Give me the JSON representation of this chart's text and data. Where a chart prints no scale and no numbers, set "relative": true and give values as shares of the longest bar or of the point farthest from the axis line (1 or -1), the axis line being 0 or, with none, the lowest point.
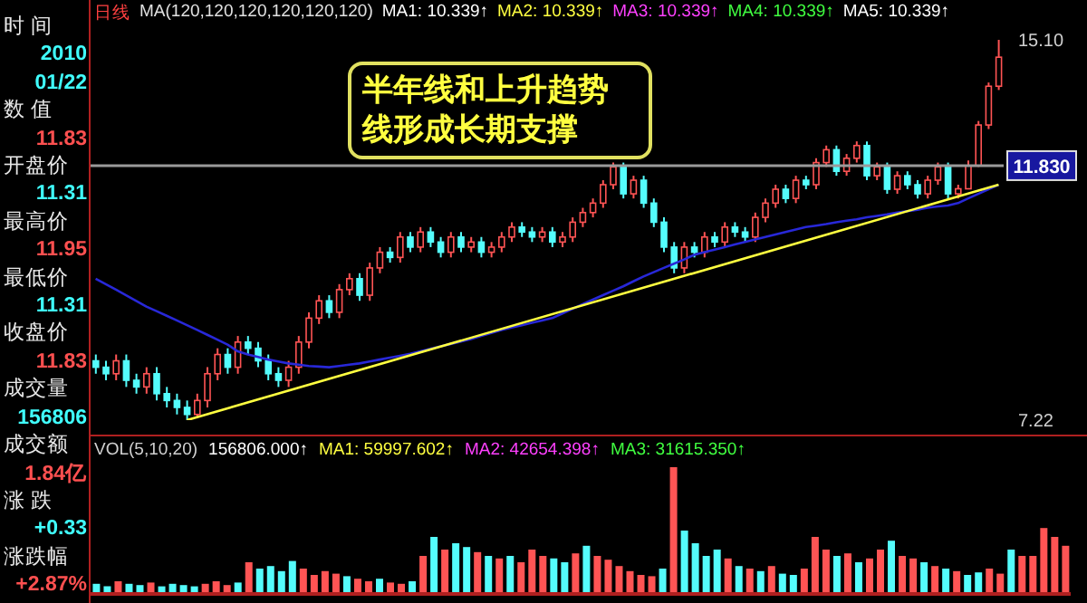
{
  "chart_data": [
    {
      "type": "other",
      "annotations": [
        "时 间",
        "2010",
        "01/22",
        "数 值",
        "11.83",
        "开盘价",
        "11.31",
        "最高价",
        "11.95",
        "最低价",
        "11.31",
        "收盘价",
        "11.83",
        "成交量",
        "156806",
        "成交额",
        "1.84亿",
        "涨 跌",
        "+0.33",
        "涨跌幅",
        "+2.87%"
      ]
    },
    {
      "type": "candlestick",
      "title": "日线",
      "log": "y",
      "ylim": [
        7.22,
        15.1
      ],
      "yticks": [
        {
          "value": 7.22,
          "label": "7.22"
        },
        {
          "value": 15.1,
          "label": "15.10"
        }
      ],
      "annotations": [
        "MA(120,120,120,120,120,120)",
        "MA1: 10.339↑",
        "MA2: 10.339↑",
        "MA3: 10.339↑",
        "MA4: 10.339↑",
        "MA5: 10.339↑",
        "半年线和上升趋势线形成长期支撑"
      ],
      "categories": [
        null,
        null,
        null,
        null,
        null,
        null,
        null,
        null,
        null,
        null,
        null,
        null,
        null,
        null,
        null,
        null,
        null,
        null,
        null,
        null,
        null,
        null,
        null,
        null,
        null,
        null,
        null,
        null,
        null,
        null,
        null,
        null,
        null,
        null,
        null,
        null,
        null,
        null,
        null,
        null,
        null,
        null,
        null,
        null,
        null,
        null,
        null,
        null,
        null,
        null,
        null,
        null,
        null,
        null,
        null,
        null,
        null,
        null,
        null,
        null,
        null,
        null,
        null,
        null,
        null,
        null,
        null,
        null,
        null,
        null,
        null,
        null,
        null,
        null,
        null,
        null,
        null,
        null,
        null,
        null,
        null,
        null,
        null,
        null,
        null,
        null,
        null,
        null,
        null,
        null
      ],
      "ohlc": [
        [
          8.1,
          8.2,
          7.9,
          8.0
        ],
        [
          8.0,
          8.1,
          7.8,
          7.9
        ],
        [
          7.9,
          8.2,
          7.8,
          8.1
        ],
        [
          8.1,
          8.2,
          7.7,
          7.8
        ],
        [
          7.8,
          7.9,
          7.6,
          7.7
        ],
        [
          7.7,
          8.0,
          7.6,
          7.9
        ],
        [
          7.9,
          8.0,
          7.5,
          7.6
        ],
        [
          7.6,
          7.7,
          7.4,
          7.5
        ],
        [
          7.5,
          7.6,
          7.3,
          7.4
        ],
        [
          7.4,
          7.5,
          7.22,
          7.3
        ],
        [
          7.3,
          7.6,
          7.25,
          7.5
        ],
        [
          7.5,
          8.0,
          7.4,
          7.9
        ],
        [
          7.9,
          8.3,
          7.8,
          8.2
        ],
        [
          8.2,
          8.3,
          7.9,
          8.0
        ],
        [
          8.0,
          8.5,
          7.9,
          8.4
        ],
        [
          8.4,
          8.5,
          8.2,
          8.3
        ],
        [
          8.3,
          8.4,
          8.0,
          8.1
        ],
        [
          8.1,
          8.2,
          7.8,
          7.9
        ],
        [
          7.9,
          8.0,
          7.7,
          7.8
        ],
        [
          7.8,
          8.1,
          7.7,
          8.0
        ],
        [
          8.0,
          8.5,
          7.9,
          8.4
        ],
        [
          8.4,
          8.9,
          8.3,
          8.8
        ],
        [
          8.8,
          9.2,
          8.7,
          9.1
        ],
        [
          9.1,
          9.2,
          8.8,
          8.9
        ],
        [
          8.9,
          9.4,
          8.8,
          9.3
        ],
        [
          9.3,
          9.6,
          9.2,
          9.5
        ],
        [
          9.5,
          9.6,
          9.1,
          9.2
        ],
        [
          9.2,
          9.8,
          9.1,
          9.7
        ],
        [
          9.7,
          10.1,
          9.6,
          10.0
        ],
        [
          10.0,
          10.1,
          9.8,
          9.9
        ],
        [
          9.9,
          10.4,
          9.8,
          10.3
        ],
        [
          10.3,
          10.4,
          10.0,
          10.1
        ],
        [
          10.1,
          10.5,
          10.0,
          10.4
        ],
        [
          10.4,
          10.5,
          10.1,
          10.2
        ],
        [
          10.2,
          10.3,
          9.9,
          10.0
        ],
        [
          10.0,
          10.4,
          9.9,
          10.3
        ],
        [
          10.3,
          10.4,
          10.0,
          10.1
        ],
        [
          10.1,
          10.3,
          10.0,
          10.2
        ],
        [
          10.2,
          10.3,
          9.9,
          10.0
        ],
        [
          10.0,
          10.2,
          9.9,
          10.1
        ],
        [
          10.1,
          10.4,
          10.0,
          10.3
        ],
        [
          10.3,
          10.6,
          10.2,
          10.5
        ],
        [
          10.5,
          10.6,
          10.3,
          10.4
        ],
        [
          10.4,
          10.5,
          10.2,
          10.3
        ],
        [
          10.3,
          10.5,
          10.2,
          10.4
        ],
        [
          10.4,
          10.5,
          10.1,
          10.2
        ],
        [
          10.2,
          10.4,
          10.1,
          10.3
        ],
        [
          10.3,
          10.7,
          10.2,
          10.6
        ],
        [
          10.6,
          10.9,
          10.5,
          10.8
        ],
        [
          10.8,
          11.1,
          10.7,
          11.0
        ],
        [
          11.0,
          11.5,
          10.9,
          11.4
        ],
        [
          11.4,
          11.9,
          11.3,
          11.8
        ],
        [
          11.8,
          11.9,
          11.1,
          11.2
        ],
        [
          11.2,
          11.6,
          11.1,
          11.5
        ],
        [
          11.5,
          11.6,
          10.9,
          11.0
        ],
        [
          11.0,
          11.1,
          10.5,
          10.6
        ],
        [
          10.6,
          10.7,
          10.0,
          10.1
        ],
        [
          10.1,
          10.2,
          9.6,
          9.7
        ],
        [
          9.7,
          10.2,
          9.6,
          10.1
        ],
        [
          10.1,
          10.2,
          9.9,
          10.0
        ],
        [
          10.0,
          10.4,
          9.9,
          10.3
        ],
        [
          10.3,
          10.4,
          10.1,
          10.2
        ],
        [
          10.2,
          10.6,
          10.1,
          10.5
        ],
        [
          10.5,
          10.6,
          10.3,
          10.4
        ],
        [
          10.4,
          10.5,
          10.2,
          10.3
        ],
        [
          10.3,
          10.8,
          10.2,
          10.7
        ],
        [
          10.7,
          11.1,
          10.6,
          11.0
        ],
        [
          11.0,
          11.4,
          10.9,
          11.3
        ],
        [
          11.3,
          11.4,
          11.0,
          11.1
        ],
        [
          11.1,
          11.6,
          11.0,
          11.5
        ],
        [
          11.5,
          11.6,
          11.3,
          11.4
        ],
        [
          11.4,
          12.0,
          11.3,
          11.9
        ],
        [
          11.9,
          12.3,
          11.8,
          12.2
        ],
        [
          12.2,
          12.3,
          11.6,
          11.7
        ],
        [
          11.7,
          12.1,
          11.6,
          12.0
        ],
        [
          12.0,
          12.4,
          11.9,
          12.3
        ],
        [
          12.3,
          12.4,
          11.5,
          11.6
        ],
        [
          11.6,
          11.9,
          11.5,
          11.8
        ],
        [
          11.8,
          11.9,
          11.2,
          11.3
        ],
        [
          11.3,
          11.7,
          11.2,
          11.6
        ],
        [
          11.6,
          11.7,
          11.3,
          11.4
        ],
        [
          11.4,
          11.5,
          11.1,
          11.2
        ],
        [
          11.2,
          11.6,
          11.1,
          11.5
        ],
        [
          11.5,
          11.9,
          11.4,
          11.8
        ],
        [
          11.8,
          11.9,
          11.1,
          11.2
        ],
        [
          11.2,
          11.4,
          11.1,
          11.31
        ],
        [
          11.31,
          11.95,
          11.31,
          11.83
        ],
        [
          11.83,
          12.9,
          11.8,
          12.8
        ],
        [
          12.8,
          13.9,
          12.7,
          13.8
        ],
        [
          13.8,
          15.1,
          13.7,
          14.6
        ]
      ],
      "colors": [
        "#54fcfc",
        "#54fcfc",
        "#ff5454",
        "#54fcfc",
        "#54fcfc",
        "#ff5454",
        "#54fcfc",
        "#54fcfc",
        "#54fcfc",
        "#54fcfc",
        "#ff5454",
        "#ff5454",
        "#ff5454",
        "#54fcfc",
        "#ff5454",
        "#54fcfc",
        "#54fcfc",
        "#54fcfc",
        "#54fcfc",
        "#ff5454",
        "#ff5454",
        "#ff5454",
        "#ff5454",
        "#54fcfc",
        "#ff5454",
        "#ff5454",
        "#54fcfc",
        "#ff5454",
        "#ff5454",
        "#54fcfc",
        "#ff5454",
        "#54fcfc",
        "#ff5454",
        "#54fcfc",
        "#54fcfc",
        "#ff5454",
        "#54fcfc",
        "#ff5454",
        "#54fcfc",
        "#ff5454",
        "#ff5454",
        "#ff5454",
        "#54fcfc",
        "#54fcfc",
        "#ff5454",
        "#54fcfc",
        "#ff5454",
        "#ff5454",
        "#ff5454",
        "#ff5454",
        "#ff5454",
        "#ff5454",
        "#54fcfc",
        "#ff5454",
        "#54fcfc",
        "#54fcfc",
        "#54fcfc",
        "#54fcfc",
        "#ff5454",
        "#54fcfc",
        "#ff5454",
        "#54fcfc",
        "#ff5454",
        "#54fcfc",
        "#54fcfc",
        "#ff5454",
        "#ff5454",
        "#ff5454",
        "#54fcfc",
        "#ff5454",
        "#54fcfc",
        "#ff5454",
        "#ff5454",
        "#54fcfc",
        "#ff5454",
        "#ff5454",
        "#54fcfc",
        "#ff5454",
        "#54fcfc",
        "#ff5454",
        "#54fcfc",
        "#54fcfc",
        "#ff5454",
        "#ff5454",
        "#54fcfc",
        "#ff5454",
        "#ff5454",
        "#ff5454",
        "#ff5454",
        "#ff5454"
      ],
      "series": [
        {
          "type": "line",
          "color": "#2828d8",
          "values": [
            9.5,
            9.4,
            9.3,
            9.2,
            9.1,
            9.0,
            8.92,
            8.84,
            8.76,
            8.68,
            8.6,
            8.52,
            8.44,
            8.36,
            8.25,
            8.2,
            8.16,
            8.12,
            8.09,
            8.06,
            8.04,
            8.02,
            8.01,
            8.0,
            8.02,
            8.04,
            8.06,
            8.09,
            8.12,
            8.15,
            8.18,
            8.21,
            8.25,
            8.29,
            8.33,
            8.37,
            8.41,
            8.45,
            8.5,
            8.55,
            8.6,
            8.64,
            8.68,
            8.72,
            8.76,
            8.8,
            8.88,
            8.96,
            9.04,
            9.12,
            9.2,
            9.28,
            9.36,
            9.45,
            9.54,
            9.62,
            9.7,
            9.78,
            9.86,
            9.95,
            10.0,
            10.05,
            10.1,
            10.15,
            10.2,
            10.25,
            10.3,
            10.35,
            10.4,
            10.45,
            10.5,
            10.53,
            10.56,
            10.6,
            10.63,
            10.66,
            10.7,
            10.73,
            10.76,
            10.8,
            10.83,
            10.86,
            10.9,
            10.93,
            10.95,
            11.0,
            11.1,
            11.2,
            11.3,
            11.4
          ]
        },
        {
          "type": "line",
          "color": "#ffff40",
          "values": [
            null,
            null,
            null,
            null,
            null,
            null,
            null,
            null,
            null,
            7.22,
            null,
            null,
            null,
            null,
            null,
            null,
            null,
            null,
            null,
            null,
            null,
            null,
            null,
            null,
            null,
            null,
            null,
            null,
            null,
            null,
            null,
            null,
            null,
            null,
            null,
            null,
            null,
            null,
            null,
            null,
            null,
            null,
            null,
            null,
            null,
            null,
            null,
            null,
            null,
            null,
            null,
            null,
            null,
            null,
            null,
            null,
            null,
            null,
            null,
            null,
            null,
            null,
            null,
            null,
            null,
            null,
            null,
            null,
            null,
            null,
            null,
            null,
            null,
            null,
            null,
            null,
            null,
            null,
            null,
            null,
            null,
            null,
            null,
            null,
            null,
            null,
            null,
            null,
            null,
            11.4
          ]
        }
      ],
      "ref_lines": [
        {
          "axis": "y",
          "value": 11.83,
          "label": "11.830",
          "color": "#9a9a9a"
        }
      ]
    },
    {
      "type": "bar",
      "relative": true,
      "title": "VOL(5,10,20)",
      "annotations": [
        "156806.000↑",
        "MA1: 59997.602↑",
        "MA2: 42654.398↑",
        "MA3: 31615.350↑"
      ],
      "categories": [
        null,
        null,
        null,
        null,
        null,
        null,
        null,
        null,
        null,
        null,
        null,
        null,
        null,
        null,
        null,
        null,
        null,
        null,
        null,
        null,
        null,
        null,
        null,
        null,
        null,
        null,
        null,
        null,
        null,
        null,
        null,
        null,
        null,
        null,
        null,
        null,
        null,
        null,
        null,
        null,
        null,
        null,
        null,
        null,
        null,
        null,
        null,
        null,
        null,
        null,
        null,
        null,
        null,
        null,
        null,
        null,
        null,
        null,
        null,
        null,
        null,
        null,
        null,
        null,
        null,
        null,
        null,
        null,
        null,
        null,
        null,
        null,
        null,
        null,
        null,
        null,
        null,
        null,
        null,
        null,
        null,
        null,
        null,
        null,
        null,
        null,
        null,
        null,
        null,
        null
      ],
      "values": [
        0.08,
        0.06,
        0.1,
        0.08,
        0.07,
        0.09,
        0.06,
        0.08,
        0.07,
        0.06,
        0.08,
        0.1,
        0.07,
        0.09,
        0.25,
        0.2,
        0.22,
        0.18,
        0.26,
        0.2,
        0.15,
        0.18,
        0.16,
        0.14,
        0.12,
        0.1,
        0.12,
        0.09,
        0.08,
        0.1,
        0.3,
        0.45,
        0.35,
        0.4,
        0.37,
        0.33,
        0.3,
        0.28,
        0.3,
        0.25,
        0.35,
        0.3,
        0.28,
        0.25,
        0.32,
        0.38,
        0.3,
        0.27,
        0.22,
        0.18,
        0.15,
        0.14,
        0.2,
        1.0,
        0.5,
        0.4,
        0.3,
        0.35,
        0.28,
        0.22,
        0.2,
        0.18,
        0.22,
        0.16,
        0.15,
        0.2,
        0.45,
        0.35,
        0.3,
        0.32,
        0.25,
        0.28,
        0.35,
        0.42,
        0.3,
        0.28,
        0.25,
        0.22,
        0.2,
        0.18,
        0.15,
        0.17,
        0.2,
        0.16,
        0.35,
        0.3,
        0.3,
        0.52,
        0.45,
        0.38
      ],
      "colors": [
        "#54fcfc",
        "#54fcfc",
        "#ff5454",
        "#54fcfc",
        "#54fcfc",
        "#ff5454",
        "#54fcfc",
        "#54fcfc",
        "#54fcfc",
        "#54fcfc",
        "#ff5454",
        "#ff5454",
        "#ff5454",
        "#54fcfc",
        "#ff5454",
        "#54fcfc",
        "#54fcfc",
        "#54fcfc",
        "#54fcfc",
        "#ff5454",
        "#ff5454",
        "#ff5454",
        "#ff5454",
        "#54fcfc",
        "#ff5454",
        "#ff5454",
        "#54fcfc",
        "#ff5454",
        "#ff5454",
        "#54fcfc",
        "#ff5454",
        "#54fcfc",
        "#ff5454",
        "#54fcfc",
        "#54fcfc",
        "#ff5454",
        "#54fcfc",
        "#ff5454",
        "#54fcfc",
        "#ff5454",
        "#ff5454",
        "#ff5454",
        "#54fcfc",
        "#54fcfc",
        "#ff5454",
        "#54fcfc",
        "#ff5454",
        "#ff5454",
        "#ff5454",
        "#ff5454",
        "#ff5454",
        "#ff5454",
        "#54fcfc",
        "#ff5454",
        "#54fcfc",
        "#54fcfc",
        "#54fcfc",
        "#54fcfc",
        "#ff5454",
        "#54fcfc",
        "#ff5454",
        "#54fcfc",
        "#ff5454",
        "#54fcfc",
        "#54fcfc",
        "#ff5454",
        "#ff5454",
        "#ff5454",
        "#54fcfc",
        "#ff5454",
        "#54fcfc",
        "#ff5454",
        "#ff5454",
        "#54fcfc",
        "#ff5454",
        "#ff5454",
        "#54fcfc",
        "#ff5454",
        "#54fcfc",
        "#ff5454",
        "#54fcfc",
        "#54fcfc",
        "#ff5454",
        "#ff5454",
        "#54fcfc",
        "#ff5454",
        "#ff5454",
        "#ff5454",
        "#ff5454",
        "#ff5454"
      ]
    }
  ]
}
